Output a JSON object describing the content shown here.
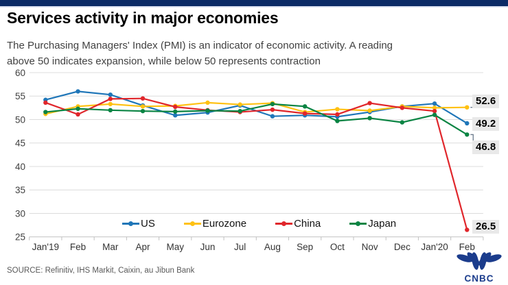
{
  "header": {
    "title": "Services activity in major economies",
    "subtitle_lines": [
      "The Purchasing Managers' Index (PMI) is an indicator of economic activity. A reading",
      "above 50 indicates expansion, while below 50 represents contraction"
    ]
  },
  "chart_data": {
    "type": "line",
    "categories": [
      "Jan'19",
      "Feb",
      "Mar",
      "Apr",
      "May",
      "Jun",
      "Jul",
      "Aug",
      "Sep",
      "Oct",
      "Nov",
      "Dec",
      "Jan'20",
      "Feb"
    ],
    "series": [
      {
        "name": "US",
        "color": "#1f76b8",
        "values": [
          54.2,
          56.0,
          55.3,
          53.0,
          50.9,
          51.5,
          53.0,
          50.7,
          50.9,
          50.6,
          51.6,
          52.8,
          53.4,
          49.2
        ],
        "end_label": "49.2"
      },
      {
        "name": "Eurozone",
        "color": "#ffc112",
        "values": [
          51.2,
          52.8,
          53.3,
          52.8,
          52.9,
          53.6,
          53.2,
          53.5,
          51.6,
          52.2,
          51.9,
          52.8,
          52.5,
          52.6
        ],
        "end_label": "52.6"
      },
      {
        "name": "China",
        "color": "#e0262b",
        "values": [
          53.6,
          51.1,
          54.4,
          54.5,
          52.7,
          52.0,
          51.6,
          52.1,
          51.3,
          51.1,
          53.5,
          52.5,
          51.8,
          26.5
        ],
        "end_label": "26.5"
      },
      {
        "name": "Japan",
        "color": "#0a8443",
        "values": [
          51.6,
          52.3,
          52.0,
          51.8,
          51.7,
          51.9,
          51.8,
          53.3,
          52.8,
          49.7,
          50.3,
          49.4,
          51.0,
          46.8
        ],
        "end_label": "46.8"
      }
    ],
    "ylim": [
      25,
      60
    ],
    "ytick_step": 5,
    "yticks": [
      "25",
      "30",
      "35",
      "40",
      "45",
      "50",
      "55",
      "60"
    ],
    "grid": true,
    "legend_position": "bottom-inside",
    "title": "Services activity in major economies",
    "xlabel": "",
    "ylabel": ""
  },
  "footer": {
    "source": "SOURCE: Refinitiv, IHS Markit, Caixin, au Jibun Bank",
    "logo_text": "CNBC"
  },
  "colors": {
    "accent_bar": "#0b2a66",
    "logo": "#1b3c8c",
    "gridline": "#dcdcdc",
    "axis": "#c0c0c0",
    "end_label_bg": "#e9e9e9"
  }
}
